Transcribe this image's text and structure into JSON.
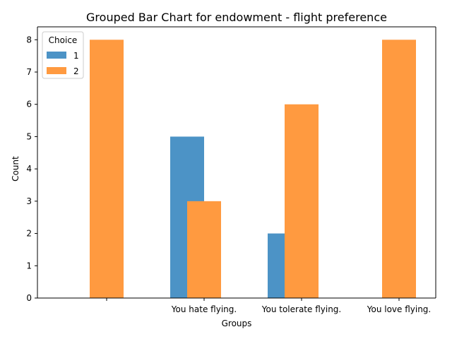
{
  "chart_data": {
    "type": "bar",
    "title": "Grouped Bar Chart for endowment - flight preference",
    "xlabel": "Groups",
    "ylabel": "Count",
    "categories": [
      "",
      "You hate flying.",
      "You tolerate flying.",
      "You love flying."
    ],
    "series": [
      {
        "name": "1",
        "values": [
          0,
          5,
          2,
          0
        ],
        "color": "#4c93c6"
      },
      {
        "name": "2",
        "values": [
          8,
          3,
          6,
          8
        ],
        "color": "#ff9a40"
      }
    ],
    "ylim": [
      0,
      8.4
    ],
    "yticks": [
      0,
      1,
      2,
      3,
      4,
      5,
      6,
      7,
      8
    ],
    "grid": false,
    "legend": {
      "title": "Choice",
      "placement": "top-left"
    }
  }
}
